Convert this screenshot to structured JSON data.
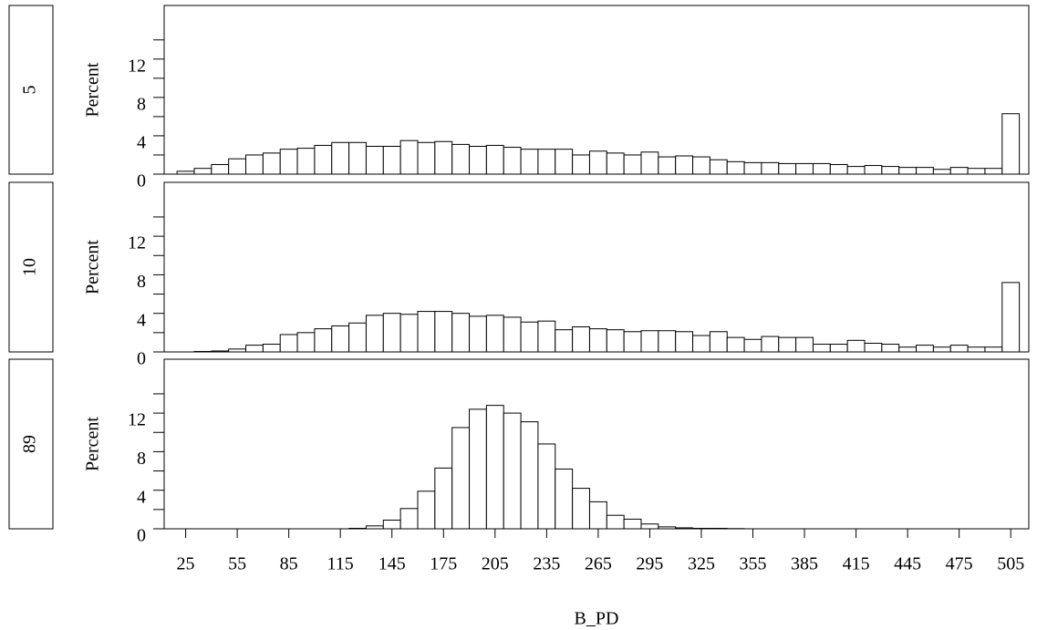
{
  "chart_data": [
    {
      "type": "histogram",
      "group": "5",
      "ylabel": "Percent",
      "bins": [
        20,
        30,
        40,
        50,
        60,
        70,
        80,
        90,
        100,
        110,
        120,
        130,
        140,
        150,
        160,
        170,
        180,
        190,
        200,
        210,
        220,
        230,
        240,
        250,
        260,
        270,
        280,
        290,
        300,
        310,
        320,
        330,
        340,
        350,
        360,
        370,
        380,
        390,
        400,
        410,
        420,
        430,
        440,
        450,
        460,
        470,
        480,
        490,
        500,
        510
      ],
      "values": [
        0.3,
        0.6,
        1.0,
        1.6,
        2.0,
        2.2,
        2.6,
        2.7,
        3.0,
        3.3,
        3.3,
        2.9,
        2.9,
        3.5,
        3.3,
        3.4,
        3.1,
        2.9,
        3.0,
        2.8,
        2.6,
        2.6,
        2.6,
        2.0,
        2.4,
        2.2,
        2.0,
        2.3,
        1.8,
        1.9,
        1.8,
        1.5,
        1.3,
        1.2,
        1.2,
        1.1,
        1.1,
        1.1,
        1.0,
        0.8,
        0.9,
        0.8,
        0.7,
        0.7,
        0.5,
        0.7,
        0.6,
        0.6,
        6.3
      ],
      "xlim": [
        12.5,
        515.5
      ],
      "ylim": [
        0,
        17.4
      ],
      "yticks": [
        0,
        4,
        8,
        12
      ],
      "minor_yticks": [
        2,
        6,
        10,
        14
      ],
      "color": "#ffffff"
    },
    {
      "type": "histogram",
      "group": "10",
      "ylabel": "Percent",
      "bins": [
        20,
        30,
        40,
        50,
        60,
        70,
        80,
        90,
        100,
        110,
        120,
        130,
        140,
        150,
        160,
        170,
        180,
        190,
        200,
        210,
        220,
        230,
        240,
        250,
        260,
        270,
        280,
        290,
        300,
        310,
        320,
        330,
        340,
        350,
        360,
        370,
        380,
        390,
        400,
        410,
        420,
        430,
        440,
        450,
        460,
        470,
        480,
        490,
        500,
        510
      ],
      "values": [
        0,
        0.05,
        0.1,
        0.3,
        0.7,
        0.8,
        1.8,
        2.0,
        2.4,
        2.7,
        3.0,
        3.8,
        4.0,
        3.9,
        4.2,
        4.2,
        4.0,
        3.7,
        3.8,
        3.6,
        3.1,
        3.2,
        2.3,
        2.6,
        2.4,
        2.3,
        2.1,
        2.2,
        2.2,
        2.1,
        1.7,
        2.1,
        1.5,
        1.3,
        1.6,
        1.5,
        1.5,
        0.8,
        0.8,
        1.2,
        0.9,
        0.8,
        0.5,
        0.7,
        0.5,
        0.7,
        0.5,
        0.5,
        7.2
      ],
      "xlim": [
        12.5,
        515.5
      ],
      "ylim": [
        0,
        17.4
      ],
      "yticks": [
        0,
        4,
        8,
        12
      ],
      "minor_yticks": [
        2,
        6,
        10,
        14
      ],
      "color": "#ffffff"
    },
    {
      "type": "histogram",
      "group": "89",
      "ylabel": "Percent",
      "xlabel": "B_PD",
      "bins": [
        20,
        30,
        40,
        50,
        60,
        70,
        80,
        90,
        100,
        110,
        120,
        130,
        140,
        150,
        160,
        170,
        180,
        190,
        200,
        210,
        220,
        230,
        240,
        250,
        260,
        270,
        280,
        290,
        300,
        310,
        320,
        330,
        340,
        350,
        360,
        370,
        380,
        390,
        400,
        410,
        420,
        430,
        440,
        450,
        460,
        470,
        480,
        490,
        500,
        510
      ],
      "values": [
        0,
        0,
        0,
        0,
        0,
        0,
        0,
        0,
        0,
        0,
        0.05,
        0.3,
        0.9,
        2.1,
        3.9,
        6.3,
        10.5,
        12.4,
        12.8,
        12.0,
        11.1,
        8.8,
        6.2,
        4.2,
        2.8,
        1.4,
        1.0,
        0.5,
        0.2,
        0.1,
        0.05,
        0.05,
        0.02,
        0,
        0,
        0,
        0,
        0,
        0,
        0,
        0,
        0,
        0,
        0,
        0,
        0,
        0,
        0,
        0
      ],
      "xlim": [
        12.5,
        515.5
      ],
      "xticks": [
        25,
        55,
        85,
        115,
        145,
        175,
        205,
        235,
        265,
        295,
        325,
        355,
        385,
        415,
        445,
        475,
        505
      ],
      "ylim": [
        0,
        17.4
      ],
      "yticks": [
        0,
        4,
        8,
        12
      ],
      "minor_yticks": [
        2,
        6,
        10,
        14
      ],
      "color": "#ffffff"
    }
  ]
}
